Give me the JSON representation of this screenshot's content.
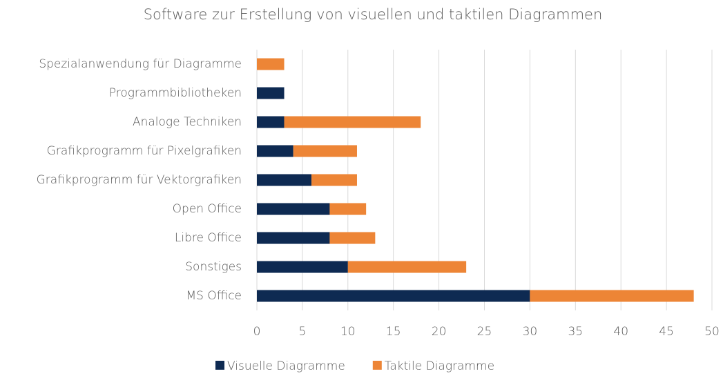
{
  "chart_data": {
    "type": "stacked-hbar",
    "title": "Software zur Erstellung von visuellen und taktilen Diagrammen",
    "categories": [
      "Spezialanwendung für Diagramme",
      "Programmbibliotheken",
      "Analoge Techniken",
      "Grafikprogramm für Pixelgrafiken",
      "Grafikprogramm für Vektorgrafiken",
      "Open Office",
      "Libre Office",
      "Sonstiges",
      "MS Office"
    ],
    "series": [
      {
        "name": "Visuelle Diagramme",
        "color": "#0e2a52",
        "values": [
          0,
          3,
          3,
          4,
          6,
          8,
          8,
          10,
          30
        ]
      },
      {
        "name": "Taktile Diagramme",
        "color": "#ed8536",
        "values": [
          3,
          0,
          15,
          7,
          5,
          4,
          5,
          13,
          18
        ]
      }
    ],
    "xlim": [
      0,
      50
    ],
    "xticks": [
      0,
      5,
      10,
      15,
      20,
      25,
      30,
      35,
      40,
      45,
      50
    ],
    "grid": true,
    "legend": "bottom"
  }
}
